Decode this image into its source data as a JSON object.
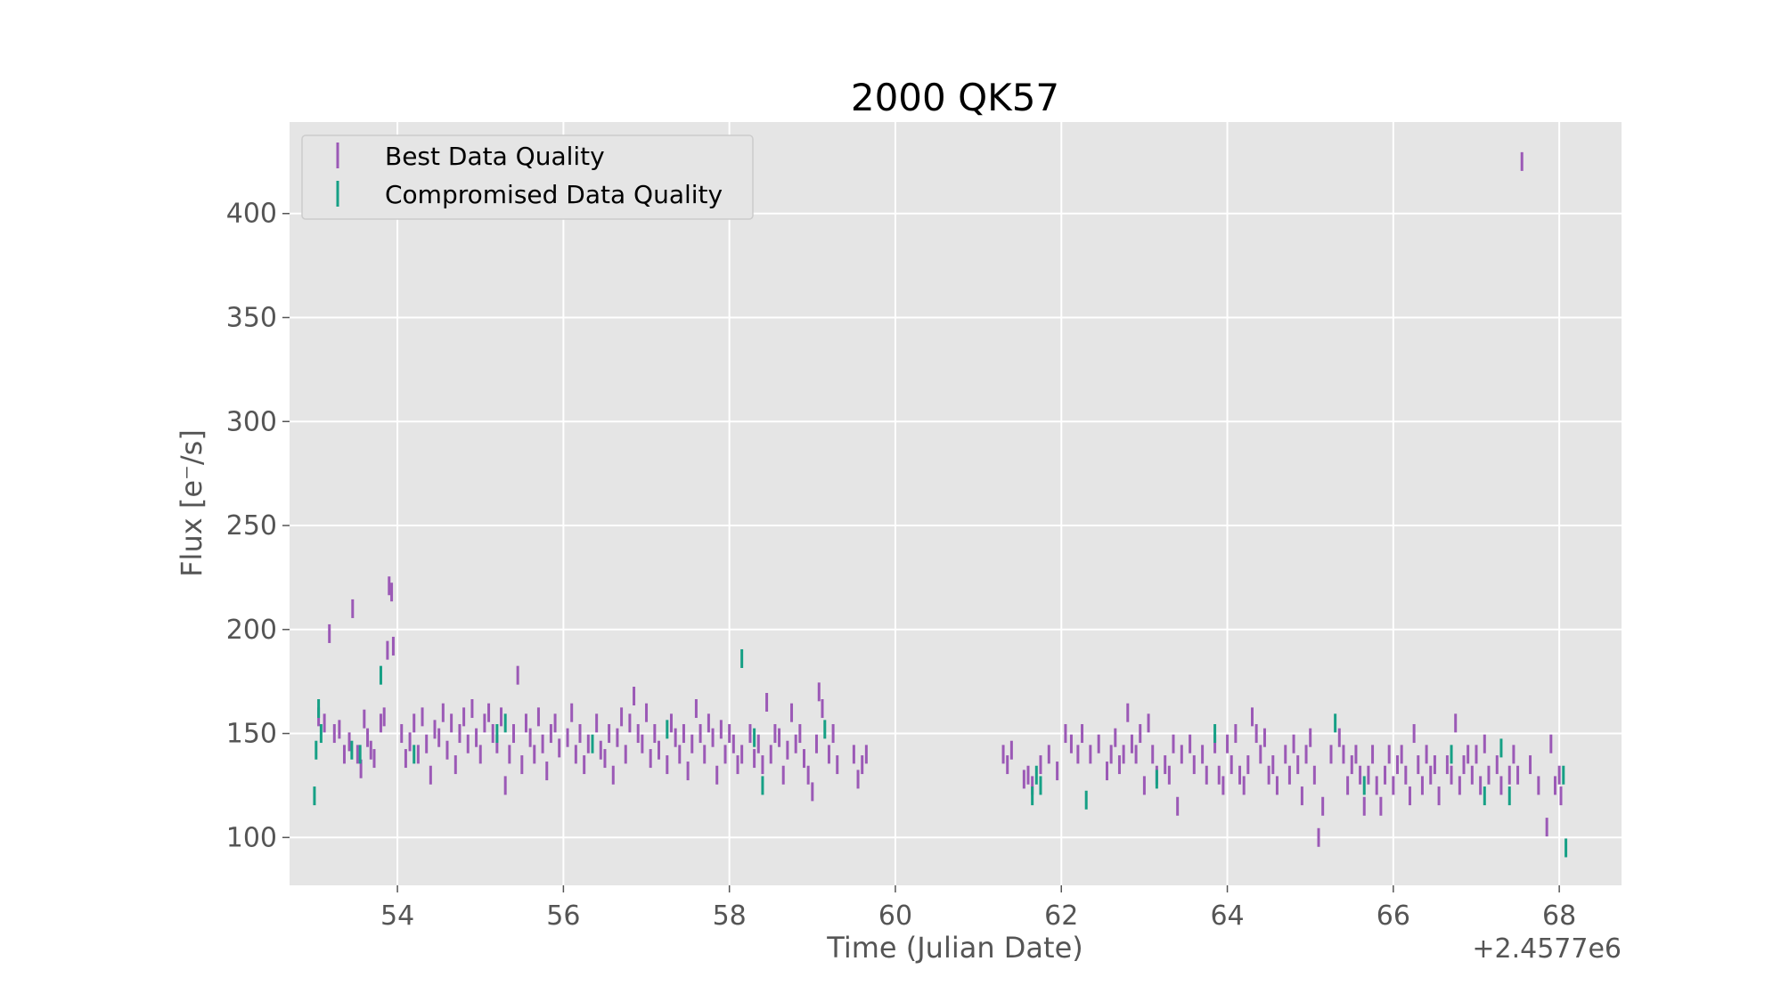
{
  "chart_data": {
    "type": "scatter",
    "title": "2000 QK57",
    "xlabel": "Time (Julian Date)",
    "ylabel": "Flux [e$^-$/s]",
    "ylabel_display": "Flux [e⁻/s]",
    "x_offset_label": "+2.4577e6",
    "xlim": [
      52.7,
      68.75
    ],
    "ylim": [
      77,
      444
    ],
    "xticks": [
      54,
      56,
      58,
      60,
      62,
      64,
      66,
      68
    ],
    "yticks": [
      100,
      150,
      200,
      250,
      300,
      350,
      400
    ],
    "grid": true,
    "legend": {
      "placement": "upper-left",
      "entries": [
        "Best Data Quality",
        "Compromised Data Quality"
      ]
    },
    "colors": {
      "best": "#9b59b6",
      "compromised": "#16a085",
      "axes_bg": "#e5e5e5",
      "grid": "#ffffff"
    },
    "error_bar_half_height": 4.5,
    "series": [
      {
        "name": "Best Data Quality",
        "marker": "errorbar",
        "points": [
          [
            53.05,
            158
          ],
          [
            53.12,
            155
          ],
          [
            53.18,
            198
          ],
          [
            53.24,
            150
          ],
          [
            53.3,
            152
          ],
          [
            53.36,
            140
          ],
          [
            53.42,
            146
          ],
          [
            53.46,
            210
          ],
          [
            53.52,
            140
          ],
          [
            53.56,
            133
          ],
          [
            53.6,
            157
          ],
          [
            53.64,
            148
          ],
          [
            53.68,
            142
          ],
          [
            53.72,
            138
          ],
          [
            53.8,
            155
          ],
          [
            53.84,
            158
          ],
          [
            53.88,
            190
          ],
          [
            53.9,
            221
          ],
          [
            53.93,
            218
          ],
          [
            53.95,
            192
          ],
          [
            54.05,
            150
          ],
          [
            54.1,
            138
          ],
          [
            54.15,
            146
          ],
          [
            54.2,
            155
          ],
          [
            54.25,
            140
          ],
          [
            54.3,
            158
          ],
          [
            54.35,
            145
          ],
          [
            54.4,
            130
          ],
          [
            54.45,
            152
          ],
          [
            54.5,
            148
          ],
          [
            54.55,
            160
          ],
          [
            54.6,
            142
          ],
          [
            54.65,
            155
          ],
          [
            54.7,
            135
          ],
          [
            54.75,
            150
          ],
          [
            54.8,
            158
          ],
          [
            54.85,
            145
          ],
          [
            54.9,
            162
          ],
          [
            54.95,
            148
          ],
          [
            55.0,
            140
          ],
          [
            55.05,
            155
          ],
          [
            55.1,
            160
          ],
          [
            55.15,
            150
          ],
          [
            55.2,
            145
          ],
          [
            55.25,
            158
          ],
          [
            55.3,
            125
          ],
          [
            55.35,
            140
          ],
          [
            55.4,
            150
          ],
          [
            55.45,
            178
          ],
          [
            55.5,
            135
          ],
          [
            55.55,
            155
          ],
          [
            55.6,
            148
          ],
          [
            55.65,
            140
          ],
          [
            55.7,
            158
          ],
          [
            55.75,
            145
          ],
          [
            55.8,
            132
          ],
          [
            55.85,
            150
          ],
          [
            55.9,
            155
          ],
          [
            55.95,
            143
          ],
          [
            56.05,
            148
          ],
          [
            56.1,
            160
          ],
          [
            56.15,
            140
          ],
          [
            56.2,
            150
          ],
          [
            56.25,
            135
          ],
          [
            56.3,
            145
          ],
          [
            56.4,
            155
          ],
          [
            56.45,
            142
          ],
          [
            56.5,
            138
          ],
          [
            56.55,
            150
          ],
          [
            56.6,
            130
          ],
          [
            56.65,
            148
          ],
          [
            56.7,
            158
          ],
          [
            56.75,
            140
          ],
          [
            56.8,
            155
          ],
          [
            56.85,
            168
          ],
          [
            56.9,
            150
          ],
          [
            56.95,
            145
          ],
          [
            57.0,
            160
          ],
          [
            57.05,
            138
          ],
          [
            57.1,
            150
          ],
          [
            57.15,
            142
          ],
          [
            57.25,
            135
          ],
          [
            57.3,
            155
          ],
          [
            57.35,
            148
          ],
          [
            57.4,
            140
          ],
          [
            57.45,
            150
          ],
          [
            57.5,
            132
          ],
          [
            57.55,
            145
          ],
          [
            57.6,
            162
          ],
          [
            57.65,
            150
          ],
          [
            57.7,
            140
          ],
          [
            57.75,
            155
          ],
          [
            57.8,
            148
          ],
          [
            57.85,
            130
          ],
          [
            57.9,
            152
          ],
          [
            57.95,
            140
          ],
          [
            58.0,
            150
          ],
          [
            58.05,
            145
          ],
          [
            58.1,
            135
          ],
          [
            58.15,
            140
          ],
          [
            58.25,
            150
          ],
          [
            58.3,
            138
          ],
          [
            58.35,
            145
          ],
          [
            58.4,
            135
          ],
          [
            58.45,
            165
          ],
          [
            58.5,
            140
          ],
          [
            58.55,
            150
          ],
          [
            58.6,
            148
          ],
          [
            58.65,
            130
          ],
          [
            58.7,
            142
          ],
          [
            58.75,
            160
          ],
          [
            58.8,
            145
          ],
          [
            58.85,
            150
          ],
          [
            58.9,
            138
          ],
          [
            58.95,
            130
          ],
          [
            59.0,
            122
          ],
          [
            59.05,
            145
          ],
          [
            59.08,
            170
          ],
          [
            59.12,
            162
          ],
          [
            59.2,
            140
          ],
          [
            59.25,
            150
          ],
          [
            59.3,
            135
          ],
          [
            59.5,
            140
          ],
          [
            59.55,
            128
          ],
          [
            59.6,
            135
          ],
          [
            59.65,
            140
          ],
          [
            61.3,
            140
          ],
          [
            61.35,
            135
          ],
          [
            61.4,
            142
          ],
          [
            61.55,
            128
          ],
          [
            61.6,
            130
          ],
          [
            61.65,
            125
          ],
          [
            61.75,
            135
          ],
          [
            61.85,
            140
          ],
          [
            61.95,
            132
          ],
          [
            62.05,
            150
          ],
          [
            62.12,
            145
          ],
          [
            62.2,
            140
          ],
          [
            62.25,
            150
          ],
          [
            62.35,
            140
          ],
          [
            62.45,
            145
          ],
          [
            62.55,
            132
          ],
          [
            62.6,
            140
          ],
          [
            62.65,
            148
          ],
          [
            62.7,
            135
          ],
          [
            62.75,
            140
          ],
          [
            62.8,
            160
          ],
          [
            62.85,
            145
          ],
          [
            62.9,
            140
          ],
          [
            62.95,
            150
          ],
          [
            63.0,
            125
          ],
          [
            63.05,
            155
          ],
          [
            63.1,
            140
          ],
          [
            63.15,
            130
          ],
          [
            63.25,
            135
          ],
          [
            63.3,
            130
          ],
          [
            63.35,
            145
          ],
          [
            63.4,
            115
          ],
          [
            63.45,
            140
          ],
          [
            63.55,
            145
          ],
          [
            63.6,
            135
          ],
          [
            63.7,
            140
          ],
          [
            63.75,
            130
          ],
          [
            63.85,
            145
          ],
          [
            63.9,
            130
          ],
          [
            63.95,
            125
          ],
          [
            64.0,
            145
          ],
          [
            64.05,
            135
          ],
          [
            64.1,
            150
          ],
          [
            64.15,
            130
          ],
          [
            64.2,
            125
          ],
          [
            64.25,
            135
          ],
          [
            64.3,
            158
          ],
          [
            64.35,
            150
          ],
          [
            64.4,
            140
          ],
          [
            64.45,
            148
          ],
          [
            64.5,
            130
          ],
          [
            64.55,
            135
          ],
          [
            64.6,
            125
          ],
          [
            64.7,
            140
          ],
          [
            64.75,
            130
          ],
          [
            64.8,
            145
          ],
          [
            64.85,
            135
          ],
          [
            64.9,
            120
          ],
          [
            64.95,
            140
          ],
          [
            65.0,
            148
          ],
          [
            65.05,
            130
          ],
          [
            65.1,
            100
          ],
          [
            65.15,
            115
          ],
          [
            65.25,
            140
          ],
          [
            65.35,
            148
          ],
          [
            65.4,
            140
          ],
          [
            65.45,
            125
          ],
          [
            65.5,
            135
          ],
          [
            65.55,
            140
          ],
          [
            65.6,
            130
          ],
          [
            65.65,
            115
          ],
          [
            65.7,
            130
          ],
          [
            65.75,
            140
          ],
          [
            65.8,
            125
          ],
          [
            65.85,
            115
          ],
          [
            65.9,
            130
          ],
          [
            65.95,
            140
          ],
          [
            66.0,
            125
          ],
          [
            66.05,
            135
          ],
          [
            66.1,
            140
          ],
          [
            66.15,
            130
          ],
          [
            66.2,
            120
          ],
          [
            66.25,
            150
          ],
          [
            66.3,
            135
          ],
          [
            66.35,
            125
          ],
          [
            66.4,
            140
          ],
          [
            66.45,
            130
          ],
          [
            66.5,
            135
          ],
          [
            66.55,
            120
          ],
          [
            66.65,
            135
          ],
          [
            66.7,
            130
          ],
          [
            66.75,
            155
          ],
          [
            66.8,
            125
          ],
          [
            66.85,
            135
          ],
          [
            66.9,
            140
          ],
          [
            66.95,
            130
          ],
          [
            67.0,
            140
          ],
          [
            67.05,
            125
          ],
          [
            67.1,
            145
          ],
          [
            67.15,
            130
          ],
          [
            67.25,
            135
          ],
          [
            67.3,
            125
          ],
          [
            67.4,
            130
          ],
          [
            67.45,
            140
          ],
          [
            67.5,
            130
          ],
          [
            67.55,
            425
          ],
          [
            67.65,
            135
          ],
          [
            67.75,
            125
          ],
          [
            67.85,
            105
          ],
          [
            67.9,
            145
          ],
          [
            67.95,
            125
          ],
          [
            68.0,
            130
          ],
          [
            68.02,
            120
          ]
        ]
      },
      {
        "name": "Compromised Data Quality",
        "marker": "errorbar",
        "points": [
          [
            53.0,
            120
          ],
          [
            53.02,
            142
          ],
          [
            53.05,
            162
          ],
          [
            53.08,
            150
          ],
          [
            53.45,
            142
          ],
          [
            53.55,
            140
          ],
          [
            53.8,
            178
          ],
          [
            54.2,
            140
          ],
          [
            55.2,
            150
          ],
          [
            55.3,
            155
          ],
          [
            56.35,
            145
          ],
          [
            57.25,
            152
          ],
          [
            58.15,
            186
          ],
          [
            58.3,
            148
          ],
          [
            58.4,
            125
          ],
          [
            59.15,
            152
          ],
          [
            61.65,
            120
          ],
          [
            61.7,
            130
          ],
          [
            61.75,
            125
          ],
          [
            62.3,
            118
          ],
          [
            63.15,
            128
          ],
          [
            63.85,
            150
          ],
          [
            65.3,
            155
          ],
          [
            65.65,
            125
          ],
          [
            66.7,
            140
          ],
          [
            67.1,
            120
          ],
          [
            67.3,
            143
          ],
          [
            67.4,
            120
          ],
          [
            68.05,
            130
          ],
          [
            68.08,
            95
          ]
        ]
      }
    ]
  }
}
